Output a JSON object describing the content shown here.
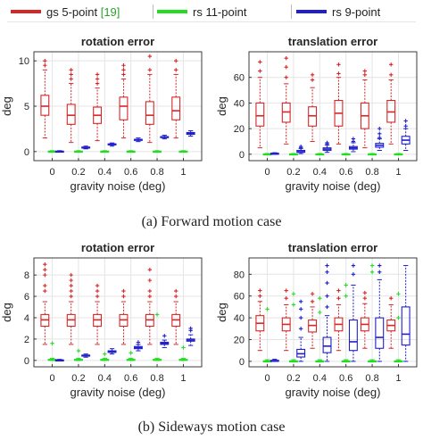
{
  "legend": {
    "items": [
      {
        "label": "gs 5-point ",
        "ref": "[19]",
        "color": "#d62728"
      },
      {
        "label": "rs 11-point",
        "ref": "",
        "color": "#22dd22"
      },
      {
        "label": "rs 9-point",
        "ref": "",
        "color": "#1f1fcc"
      }
    ]
  },
  "captions": {
    "a": "(a) Forward motion case",
    "b": "(b) Sideways motion case"
  },
  "colors": {
    "gs": "#d62728",
    "rs11": "#22dd22",
    "rs9": "#1f1fcc"
  },
  "chart_data": [
    {
      "type": "box",
      "title": "rotation error",
      "xlabel": "gravity noise (deg)",
      "ylabel": "deg",
      "categories": [
        "0",
        "0.2",
        "0.4",
        "0.6",
        "0.8",
        "1"
      ],
      "ylim": [
        -1,
        11
      ],
      "yticks": [
        0,
        5,
        10
      ],
      "grid": true,
      "series": [
        {
          "name": "gs 5-point [19]",
          "boxes": [
            {
              "whislo": 1.5,
              "q1": 4.0,
              "med": 5.0,
              "q3": 6.2,
              "whishi": 9.0,
              "fliers": [
                9.5,
                10.0
              ]
            },
            {
              "whislo": 1.0,
              "q1": 3.0,
              "med": 4.0,
              "q3": 5.2,
              "whishi": 7.5,
              "fliers": [
                8.0,
                8.5,
                9.0
              ]
            },
            {
              "whislo": 1.2,
              "q1": 3.1,
              "med": 4.0,
              "q3": 4.9,
              "whishi": 7.0,
              "fliers": [
                7.5,
                8.0,
                8.5
              ]
            },
            {
              "whislo": 1.5,
              "q1": 3.5,
              "med": 5.0,
              "q3": 6.0,
              "whishi": 8.0,
              "fliers": [
                8.5,
                9.0,
                9.5
              ]
            },
            {
              "whislo": 1.0,
              "q1": 3.0,
              "med": 4.0,
              "q3": 5.5,
              "whishi": 8.5,
              "fliers": [
                9.0,
                10.5
              ]
            },
            {
              "whislo": 1.5,
              "q1": 3.5,
              "med": 4.5,
              "q3": 6.0,
              "whishi": 8.5,
              "fliers": [
                9.0,
                10.0
              ]
            }
          ]
        },
        {
          "name": "rs 11-point",
          "boxes": [
            {
              "whislo": 0.0,
              "q1": 0.0,
              "med": 0.0,
              "q3": 0.05,
              "whishi": 0.1,
              "fliers": []
            },
            {
              "whislo": 0.0,
              "q1": 0.0,
              "med": 0.0,
              "q3": 0.05,
              "whishi": 0.1,
              "fliers": []
            },
            {
              "whislo": 0.0,
              "q1": 0.0,
              "med": 0.0,
              "q3": 0.05,
              "whishi": 0.1,
              "fliers": []
            },
            {
              "whislo": 0.0,
              "q1": 0.0,
              "med": 0.0,
              "q3": 0.05,
              "whishi": 0.1,
              "fliers": []
            },
            {
              "whislo": 0.0,
              "q1": 0.0,
              "med": 0.0,
              "q3": 0.05,
              "whishi": 0.1,
              "fliers": []
            },
            {
              "whislo": 0.0,
              "q1": 0.0,
              "med": 0.0,
              "q3": 0.05,
              "whishi": 0.1,
              "fliers": []
            }
          ]
        },
        {
          "name": "rs 9-point",
          "boxes": [
            {
              "whislo": 0.0,
              "q1": 0.0,
              "med": 0.0,
              "q3": 0.05,
              "whishi": 0.1,
              "fliers": []
            },
            {
              "whislo": 0.3,
              "q1": 0.4,
              "med": 0.45,
              "q3": 0.5,
              "whishi": 0.6,
              "fliers": []
            },
            {
              "whislo": 0.6,
              "q1": 0.75,
              "med": 0.8,
              "q3": 0.85,
              "whishi": 0.95,
              "fliers": []
            },
            {
              "whislo": 1.1,
              "q1": 1.25,
              "med": 1.3,
              "q3": 1.35,
              "whishi": 1.5,
              "fliers": []
            },
            {
              "whislo": 1.4,
              "q1": 1.55,
              "med": 1.6,
              "q3": 1.65,
              "whishi": 1.8,
              "fliers": []
            },
            {
              "whislo": 1.7,
              "q1": 1.9,
              "med": 2.0,
              "q3": 2.1,
              "whishi": 2.3,
              "fliers": []
            }
          ]
        }
      ]
    },
    {
      "type": "box",
      "title": "translation error",
      "xlabel": "gravity noise (deg)",
      "ylabel": "deg",
      "categories": [
        "0",
        "0.2",
        "0.4",
        "0.6",
        "0.8",
        "1"
      ],
      "ylim": [
        -5,
        80
      ],
      "yticks": [
        0,
        20,
        40,
        60
      ],
      "grid": true,
      "series": [
        {
          "name": "gs 5-point [19]",
          "boxes": [
            {
              "whislo": 5,
              "q1": 22,
              "med": 30,
              "q3": 40,
              "whishi": 60,
              "fliers": [
                65,
                72
              ]
            },
            {
              "whislo": 8,
              "q1": 25,
              "med": 33,
              "q3": 40,
              "whishi": 55,
              "fliers": [
                60,
                68,
                75
              ]
            },
            {
              "whislo": 10,
              "q1": 22,
              "med": 30,
              "q3": 37,
              "whishi": 52,
              "fliers": [
                58,
                62
              ]
            },
            {
              "whislo": 8,
              "q1": 22,
              "med": 32,
              "q3": 42,
              "whishi": 60,
              "fliers": [
                63,
                70
              ]
            },
            {
              "whislo": 5,
              "q1": 20,
              "med": 30,
              "q3": 40,
              "whishi": 58,
              "fliers": [
                62,
                65
              ]
            },
            {
              "whislo": 8,
              "q1": 25,
              "med": 33,
              "q3": 42,
              "whishi": 58,
              "fliers": [
                62,
                70
              ]
            }
          ]
        },
        {
          "name": "rs 11-point",
          "boxes": [
            {
              "whislo": 0,
              "q1": 0,
              "med": 0,
              "q3": 0.3,
              "whishi": 0.6,
              "fliers": []
            },
            {
              "whislo": 0,
              "q1": 0,
              "med": 0,
              "q3": 0.3,
              "whishi": 0.6,
              "fliers": []
            },
            {
              "whislo": 0,
              "q1": 0,
              "med": 0,
              "q3": 0.3,
              "whishi": 0.6,
              "fliers": []
            },
            {
              "whislo": 0,
              "q1": 0,
              "med": 0,
              "q3": 0.3,
              "whishi": 0.6,
              "fliers": []
            },
            {
              "whislo": 0,
              "q1": 0,
              "med": 0,
              "q3": 0.3,
              "whishi": 0.6,
              "fliers": []
            },
            {
              "whislo": 0,
              "q1": 0,
              "med": 0,
              "q3": 0.3,
              "whishi": 0.6,
              "fliers": []
            }
          ]
        },
        {
          "name": "rs 9-point",
          "boxes": [
            {
              "whislo": 0,
              "q1": 0.2,
              "med": 0.5,
              "q3": 0.8,
              "whishi": 1.2,
              "fliers": []
            },
            {
              "whislo": 0.5,
              "q1": 1.5,
              "med": 2,
              "q3": 3,
              "whishi": 4.5,
              "fliers": [
                5,
                6
              ]
            },
            {
              "whislo": 1.5,
              "q1": 3,
              "med": 4,
              "q3": 5,
              "whishi": 7,
              "fliers": [
                8,
                9
              ]
            },
            {
              "whislo": 2,
              "q1": 4,
              "med": 5,
              "q3": 6,
              "whishi": 9,
              "fliers": [
                10,
                12
              ]
            },
            {
              "whislo": 3,
              "q1": 5.5,
              "med": 7,
              "q3": 8.5,
              "whishi": 12,
              "fliers": [
                13,
                16,
                20
              ]
            },
            {
              "whislo": 3,
              "q1": 8,
              "med": 11,
              "q3": 14,
              "whishi": 20,
              "fliers": [
                22,
                26
              ]
            }
          ]
        }
      ]
    },
    {
      "type": "box",
      "title": "rotation error",
      "xlabel": "gravity noise (deg)",
      "ylabel": "deg",
      "categories": [
        "0",
        "0.2",
        "0.4",
        "0.6",
        "0.8",
        "1"
      ],
      "ylim": [
        -0.6,
        9.6
      ],
      "yticks": [
        0,
        2,
        4,
        6,
        8
      ],
      "grid": true,
      "series": [
        {
          "name": "gs 5-point [19]",
          "boxes": [
            {
              "whislo": 1.5,
              "q1": 3.2,
              "med": 3.8,
              "q3": 4.3,
              "whishi": 5.5,
              "fliers": [
                6.5,
                7.0,
                8.0,
                8.5,
                9.0
              ]
            },
            {
              "whislo": 1.5,
              "q1": 3.2,
              "med": 3.8,
              "q3": 4.3,
              "whishi": 5.5,
              "fliers": [
                6.0,
                6.5,
                7.0,
                7.5,
                8.0
              ]
            },
            {
              "whislo": 1.5,
              "q1": 3.2,
              "med": 3.8,
              "q3": 4.3,
              "whishi": 5.5,
              "fliers": [
                6.0,
                6.5,
                7.0
              ]
            },
            {
              "whislo": 1.5,
              "q1": 3.2,
              "med": 3.8,
              "q3": 4.3,
              "whishi": 5.5,
              "fliers": [
                6.0,
                6.5
              ]
            },
            {
              "whislo": 1.5,
              "q1": 3.2,
              "med": 3.8,
              "q3": 4.3,
              "whishi": 5.5,
              "fliers": [
                6.0,
                6.5,
                7.5,
                8.5
              ]
            },
            {
              "whislo": 1.5,
              "q1": 3.2,
              "med": 3.8,
              "q3": 4.3,
              "whishi": 5.5,
              "fliers": [
                6.0,
                6.5
              ]
            }
          ]
        },
        {
          "name": "rs 11-point",
          "boxes": [
            {
              "whislo": 0.0,
              "q1": 0.0,
              "med": 0.05,
              "q3": 0.1,
              "whishi": 0.2,
              "fliers": [
                1.6
              ]
            },
            {
              "whislo": 0.0,
              "q1": 0.0,
              "med": 0.05,
              "q3": 0.1,
              "whishi": 0.2,
              "fliers": [
                0.9
              ]
            },
            {
              "whislo": 0.0,
              "q1": 0.0,
              "med": 0.05,
              "q3": 0.1,
              "whishi": 0.2,
              "fliers": [
                0.6
              ]
            },
            {
              "whislo": 0.0,
              "q1": 0.0,
              "med": 0.05,
              "q3": 0.1,
              "whishi": 0.2,
              "fliers": [
                0.7
              ]
            },
            {
              "whislo": 0.0,
              "q1": 0.0,
              "med": 0.05,
              "q3": 0.1,
              "whishi": 0.2,
              "fliers": [
                4.3
              ]
            },
            {
              "whislo": 0.0,
              "q1": 0.0,
              "med": 0.05,
              "q3": 0.1,
              "whishi": 0.2,
              "fliers": [
                1.2
              ]
            }
          ]
        },
        {
          "name": "rs 9-point",
          "boxes": [
            {
              "whislo": 0.0,
              "q1": 0.0,
              "med": 0.0,
              "q3": 0.05,
              "whishi": 0.1,
              "fliers": []
            },
            {
              "whislo": 0.3,
              "q1": 0.4,
              "med": 0.45,
              "q3": 0.5,
              "whishi": 0.6,
              "fliers": []
            },
            {
              "whislo": 0.6,
              "q1": 0.75,
              "med": 0.8,
              "q3": 0.9,
              "whishi": 1.1,
              "fliers": []
            },
            {
              "whislo": 0.9,
              "q1": 1.1,
              "med": 1.2,
              "q3": 1.3,
              "whishi": 1.5,
              "fliers": [
                1.7
              ]
            },
            {
              "whislo": 1.2,
              "q1": 1.5,
              "med": 1.6,
              "q3": 1.7,
              "whishi": 1.9,
              "fliers": [
                2.3
              ]
            },
            {
              "whislo": 1.4,
              "q1": 1.8,
              "med": 1.9,
              "q3": 2.0,
              "whishi": 2.4,
              "fliers": [
                2.8,
                3.0
              ]
            }
          ]
        }
      ]
    },
    {
      "type": "box",
      "title": "translation error",
      "xlabel": "gravity noise (deg)",
      "ylabel": "deg",
      "categories": [
        "0",
        "0.2",
        "0.4",
        "0.6",
        "0.8",
        "1"
      ],
      "ylim": [
        -5,
        95
      ],
      "yticks": [
        0,
        20,
        40,
        60,
        80
      ],
      "grid": true,
      "series": [
        {
          "name": "gs 5-point [19]",
          "boxes": [
            {
              "whislo": 10,
              "q1": 28,
              "med": 35,
              "q3": 42,
              "whishi": 55,
              "fliers": [
                60,
                65
              ]
            },
            {
              "whislo": 10,
              "q1": 28,
              "med": 34,
              "q3": 40,
              "whishi": 52,
              "fliers": [
                58,
                65
              ]
            },
            {
              "whislo": 12,
              "q1": 27,
              "med": 33,
              "q3": 38,
              "whishi": 50,
              "fliers": [
                55,
                62
              ]
            },
            {
              "whislo": 10,
              "q1": 28,
              "med": 34,
              "q3": 40,
              "whishi": 52,
              "fliers": [
                58,
                65
              ]
            },
            {
              "whislo": 12,
              "q1": 28,
              "med": 34,
              "q3": 40,
              "whishi": 53,
              "fliers": [
                58,
                63
              ]
            },
            {
              "whislo": 12,
              "q1": 28,
              "med": 33,
              "q3": 38,
              "whishi": 52,
              "fliers": [
                58
              ]
            }
          ]
        },
        {
          "name": "rs 11-point",
          "boxes": [
            {
              "whislo": 0,
              "q1": 0,
              "med": 0,
              "q3": 0.5,
              "whishi": 1.5,
              "fliers": [
                48
              ]
            },
            {
              "whislo": 0,
              "q1": 0,
              "med": 0,
              "q3": 0.5,
              "whishi": 1.5,
              "fliers": [
                52,
                62
              ]
            },
            {
              "whislo": 0,
              "q1": 0,
              "med": 0,
              "q3": 0.5,
              "whishi": 1.5,
              "fliers": [
                45,
                58
              ]
            },
            {
              "whislo": 0,
              "q1": 0,
              "med": 0,
              "q3": 0.5,
              "whishi": 1.5,
              "fliers": [
                60,
                70
              ]
            },
            {
              "whislo": 0,
              "q1": 0,
              "med": 0,
              "q3": 0.5,
              "whishi": 1.5,
              "fliers": [
                82,
                88
              ]
            },
            {
              "whislo": 0,
              "q1": 0,
              "med": 0,
              "q3": 0.5,
              "whishi": 1.5,
              "fliers": [
                40,
                62
              ]
            }
          ]
        },
        {
          "name": "rs 9-point",
          "boxes": [
            {
              "whislo": 0,
              "q1": 0,
              "med": 0.5,
              "q3": 1,
              "whishi": 2,
              "fliers": []
            },
            {
              "whislo": 0,
              "q1": 4,
              "med": 7,
              "q3": 11,
              "whishi": 22,
              "fliers": [
                30,
                40,
                48,
                55
              ]
            },
            {
              "whislo": 0,
              "q1": 8,
              "med": 14,
              "q3": 22,
              "whishi": 42,
              "fliers": [
                50,
                60,
                72,
                82,
                88
              ]
            },
            {
              "whislo": 0,
              "q1": 10,
              "med": 18,
              "q3": 38,
              "whishi": 70,
              "fliers": [
                80,
                88
              ]
            },
            {
              "whislo": 0,
              "q1": 12,
              "med": 22,
              "q3": 40,
              "whishi": 75,
              "fliers": [
                82,
                88
              ]
            },
            {
              "whislo": 0,
              "q1": 15,
              "med": 25,
              "q3": 50,
              "whishi": 88,
              "fliers": []
            }
          ]
        }
      ]
    }
  ]
}
